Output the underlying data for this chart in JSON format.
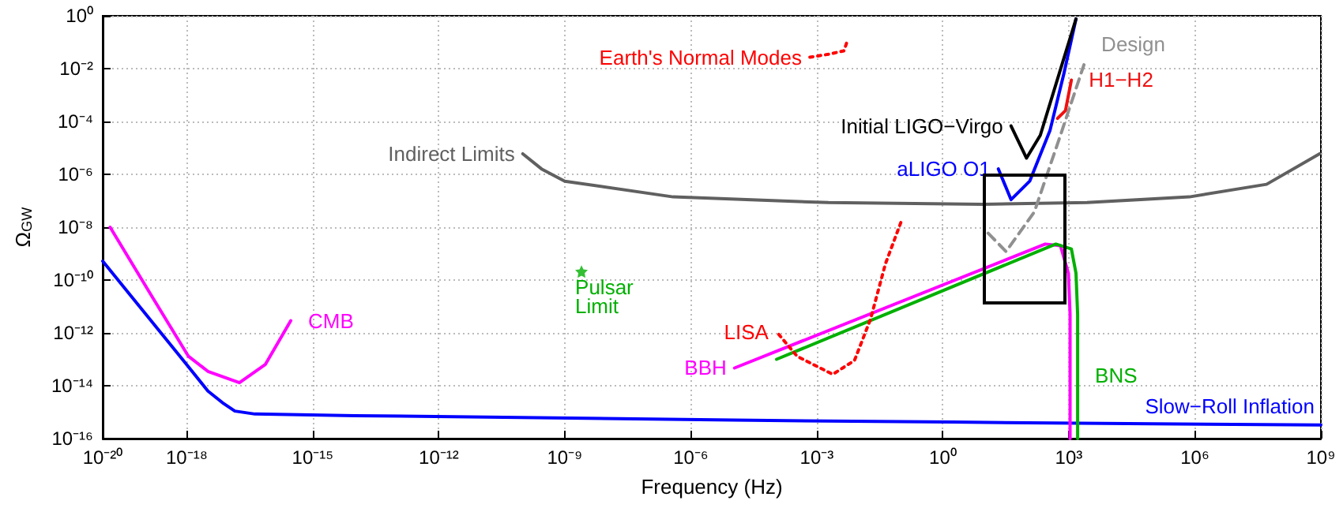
{
  "chart_data": {
    "type": "line",
    "xlabel": "Frequency (Hz)",
    "ylabel": "Ω$_{GW}$",
    "log": "xy",
    "grid": true,
    "legend": false,
    "marker": "none",
    "xlim": [
      1e-20,
      1000000000.0
    ],
    "ylim": [
      1e-16,
      1
    ],
    "xticks": [
      {
        "value": 1e-20,
        "label": "10⁻²⁰"
      },
      {
        "value": 1e-18,
        "label": "10⁻¹⁸"
      },
      {
        "value": 1e-15,
        "label": "10⁻¹⁵"
      },
      {
        "value": 1e-12,
        "label": "10⁻¹²"
      },
      {
        "value": 1e-09,
        "label": "10⁻⁹"
      },
      {
        "value": 1e-06,
        "label": "10⁻⁶"
      },
      {
        "value": 0.001,
        "label": "10⁻³"
      },
      {
        "value": 1,
        "label": "10⁰"
      },
      {
        "value": 1000.0,
        "label": "10³"
      },
      {
        "value": 1000000.0,
        "label": "10⁶"
      },
      {
        "value": 1000000000.0,
        "label": "10⁹"
      }
    ],
    "yticks": [
      {
        "value": 1e-16,
        "label": "10⁻¹⁶"
      },
      {
        "value": 1e-14,
        "label": "10⁻¹⁴"
      },
      {
        "value": 1e-12,
        "label": "10⁻¹²"
      },
      {
        "value": 1e-10,
        "label": "10⁻¹⁰"
      },
      {
        "value": 1e-08,
        "label": "10⁻⁸"
      },
      {
        "value": 1e-06,
        "label": "10⁻⁶"
      },
      {
        "value": 0.0001,
        "label": "10⁻⁴"
      },
      {
        "value": 0.01,
        "label": "10⁻²"
      },
      {
        "value": 1,
        "label": "10⁰"
      }
    ],
    "series": [
      {
        "name": "Slow−Roll Inflation",
        "color": "#0000ff",
        "x": [
          1e-20,
          1e-18,
          3.2e-18,
          7.6e-18,
          1.4e-17,
          4.2e-17,
          1e-14,
          1.4e-11,
          1e-05,
          1.7,
          100000.0,
          1000000000.0
        ],
        "values": [
          5.2e-10,
          6.3e-14,
          6.3e-15,
          2.1e-15,
          1.1e-15,
          8.5e-16,
          7.4e-16,
          6.5e-16,
          5e-16,
          4.2e-16,
          3.6e-16,
          3.3e-16
        ]
      },
      {
        "name": "CMB",
        "color": "#ff00ff",
        "x": [
          1.5e-20,
          1.4e-19,
          1.1e-18,
          3.2e-18,
          1.8e-17,
          7.4e-17,
          3e-16
        ],
        "values": [
          1e-08,
          2.8e-11,
          1.3e-13,
          3.5e-14,
          1.3e-14,
          6.3e-14,
          2.9e-12
        ]
      },
      {
        "name": "Indirect Limits",
        "color": "#606060",
        "x": [
          930000000.0,
          51000000.0,
          740000.0,
          2700.0,
          9.1,
          0.0019,
          3.8e-07,
          1e-09,
          2.8e-10,
          1e-10
        ],
        "values": [
          6e-06,
          4.2e-07,
          1.4e-07,
          8.5e-08,
          7.4e-08,
          8.5e-08,
          1.4e-07,
          5.5e-07,
          1.6e-06,
          6e-06
        ]
      },
      {
        "name": "aLIGO O1",
        "color": "#0000ff",
        "x": [
          1480,
          759,
          355,
          117,
          42,
          21
        ],
        "values": [
          0.76,
          0.0063,
          4.5e-05,
          5.5e-07,
          1.1e-07,
          1.6e-06
        ]
      },
      {
        "name": "Initial LIGO−Virgo",
        "color": "#000000",
        "x": [
          1480,
          631,
          209,
          98,
          42
        ],
        "values": [
          0.76,
          0.0093,
          3e-05,
          4.1e-06,
          6.8e-05
        ]
      },
      {
        "name": "H1−H2",
        "color": "#f01010",
        "x": [
          537,
          832,
          1150
        ],
        "values": [
          0.00013,
          0.00026,
          0.0037
        ]
      },
      {
        "name": "Design",
        "color": "#909090",
        "line_style": "dashed",
        "x": [
          12,
          32,
          151,
          631,
          2290
        ],
        "values": [
          5.9e-09,
          1.2e-09,
          3.8e-08,
          3e-05,
          0.014
        ]
      },
      {
        "name": "BBH",
        "color": "#ff00ff",
        "x": [
          1070,
          1070,
          977,
          631,
          275,
          1.1e-05
        ],
        "values": [
          1e-16,
          5e-12,
          1.8e-10,
          2e-09,
          2.3e-09,
          4.7e-14
        ]
      },
      {
        "name": "BNS",
        "color": "#00b000",
        "x": [
          0.00011,
          490,
          1150,
          1480,
          1620,
          1620
        ],
        "values": [
          1e-13,
          2.3e-09,
          1.5e-09,
          1.8e-10,
          5e-12,
          1e-16
        ]
      },
      {
        "name": "LISA",
        "color": "#ff0000",
        "line_style": "dotted",
        "x": [
          0.1,
          0.043,
          0.019,
          0.0079,
          0.0024,
          0.00034,
          0.00011
        ],
        "values": [
          1.5e-08,
          4.1e-10,
          3.3e-12,
          9.1e-14,
          2.7e-14,
          1.3e-13,
          1.1e-12
        ]
      },
      {
        "name": "Earth's Normal Modes",
        "color": "#ff0000",
        "line_style": "dotted",
        "x": [
          0.0051,
          0.0044,
          0.0019,
          0.00068
        ],
        "values": [
          0.091,
          0.047,
          0.035,
          0.027
        ]
      },
      {
        "name": "Pulsar\nLimit",
        "type": "scatter",
        "marker": "star",
        "color": "#00b000",
        "x": [
          2.5e-09
        ],
        "values": [
          2.1e-10
        ]
      }
    ]
  }
}
